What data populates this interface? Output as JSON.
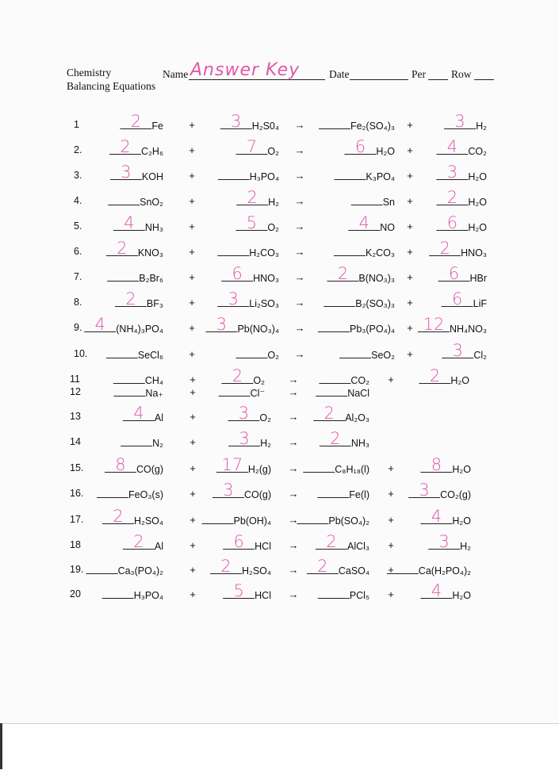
{
  "header": {
    "course": "Chemistry",
    "subtitle": "Balancing Equations",
    "name_label": "Name",
    "name_value": "Answer Key",
    "date_label": "Date",
    "per_label": "Per",
    "row_label": "Row"
  },
  "symbols": {
    "plus": "+",
    "arrow": "→"
  },
  "ink_color": "#e05aa8",
  "equations": [
    {
      "num": "1",
      "reactants": [
        {
          "coef": "2",
          "formula": "Fe"
        },
        {
          "coef": "3",
          "formula": "H₂S0₄"
        }
      ],
      "products": [
        {
          "coef": "",
          "formula": "Fe₂(SO₄)₃"
        },
        {
          "coef": "3",
          "formula": "H₂"
        }
      ]
    },
    {
      "num": "2.",
      "reactants": [
        {
          "coef": "2",
          "formula": "C₂H₆"
        },
        {
          "coef": "7",
          "formula": "O₂"
        }
      ],
      "products": [
        {
          "coef": "6",
          "formula": "H₂O"
        },
        {
          "coef": "4",
          "formula": "CO₂"
        }
      ]
    },
    {
      "num": "3.",
      "reactants": [
        {
          "coef": "3",
          "formula": "KOH"
        },
        {
          "coef": "",
          "formula": "H₃PO₄"
        }
      ],
      "products": [
        {
          "coef": "",
          "formula": "K₃PO₄"
        },
        {
          "coef": "3",
          "formula": "H₂O"
        }
      ]
    },
    {
      "num": "4.",
      "reactants": [
        {
          "coef": "",
          "formula": "SnO₂"
        },
        {
          "coef": "2",
          "formula": "H₂"
        }
      ],
      "products": [
        {
          "coef": "",
          "formula": "Sn"
        },
        {
          "coef": "2",
          "formula": "H₂O"
        }
      ]
    },
    {
      "num": "5.",
      "reactants": [
        {
          "coef": "4",
          "formula": "NH₃"
        },
        {
          "coef": "5",
          "formula": "O₂"
        }
      ],
      "products": [
        {
          "coef": "4",
          "formula": "NO"
        },
        {
          "coef": "6",
          "formula": "H₂O"
        }
      ]
    },
    {
      "num": "6.",
      "reactants": [
        {
          "coef": "2",
          "formula": "KNO₃"
        },
        {
          "coef": "",
          "formula": "H₂CO₃"
        }
      ],
      "products": [
        {
          "coef": "",
          "formula": "K₂CO₃"
        },
        {
          "coef": "2",
          "formula": "HNO₃"
        }
      ]
    },
    {
      "num": "7.",
      "reactants": [
        {
          "coef": "",
          "formula": "B₂Br₆"
        },
        {
          "coef": "6",
          "formula": "HNO₃"
        }
      ],
      "products": [
        {
          "coef": "2",
          "formula": "B(NO₃)₃"
        },
        {
          "coef": "6",
          "formula": "HBr"
        }
      ]
    },
    {
      "num": "8.",
      "reactants": [
        {
          "coef": "2",
          "formula": "BF₃"
        },
        {
          "coef": "3",
          "formula": "Li₂SO₃"
        }
      ],
      "products": [
        {
          "coef": "",
          "formula": "B₂(SO₃)₃"
        },
        {
          "coef": "6",
          "formula": "LiF"
        }
      ]
    },
    {
      "num": "9.",
      "reactants": [
        {
          "coef": "4",
          "formula": "(NH₄)₃PO₄"
        },
        {
          "coef": "3",
          "formula": "Pb(NO₃)₄"
        }
      ],
      "products": [
        {
          "coef": "",
          "formula": "Pb₃(PO₄)₄"
        },
        {
          "coef": "12",
          "formula": "NH₄NO₃"
        }
      ]
    },
    {
      "num": "10.",
      "reactants": [
        {
          "coef": "",
          "formula": "SeCl₆"
        },
        {
          "coef": "",
          "formula": "O₂"
        }
      ],
      "products": [
        {
          "coef": "",
          "formula": "SeO₂"
        },
        {
          "coef": "3",
          "formula": "Cl₂"
        }
      ]
    },
    {
      "num": "11",
      "reactants": [
        {
          "coef": "",
          "formula": "CH₄"
        },
        {
          "coef": "2",
          "formula": "O₂"
        }
      ],
      "products": [
        {
          "coef": "",
          "formula": "CO₂"
        },
        {
          "coef": "2",
          "formula": "H₂O"
        }
      ]
    },
    {
      "num": "12",
      "reactants": [
        {
          "coef": "",
          "formula": "Na₊"
        },
        {
          "coef": "",
          "formula": "Cl⁻"
        }
      ],
      "products": [
        {
          "coef": "",
          "formula": "NaCl"
        }
      ]
    },
    {
      "num": "13",
      "reactants": [
        {
          "coef": "4",
          "formula": "Al"
        },
        {
          "coef": "3",
          "formula": "O₂"
        }
      ],
      "products": [
        {
          "coef": "2",
          "formula": "Al₂O₃"
        }
      ]
    },
    {
      "num": "14",
      "reactants": [
        {
          "coef": "",
          "formula": "N₂"
        },
        {
          "coef": "3",
          "formula": "H₂"
        }
      ],
      "products": [
        {
          "coef": "2",
          "formula": "NH₃"
        }
      ]
    },
    {
      "num": "15.",
      "reactants": [
        {
          "coef": "8",
          "formula": "CO(g)"
        },
        {
          "coef": "17",
          "formula": "H₂(g)"
        }
      ],
      "products": [
        {
          "coef": "",
          "formula": "C₈H₁₈(l)"
        },
        {
          "coef": "8",
          "formula": "H₂O"
        }
      ]
    },
    {
      "num": "16.",
      "reactants": [
        {
          "coef": "",
          "formula": "FeO₃(s)"
        },
        {
          "coef": "3",
          "formula": "CO(g)"
        }
      ],
      "products": [
        {
          "coef": "",
          "formula": "Fe(l)"
        },
        {
          "coef": "3",
          "formula": "CO₂(g)"
        }
      ]
    },
    {
      "num": "17.",
      "reactants": [
        {
          "coef": "2",
          "formula": "H₂SO₄"
        },
        {
          "coef": "",
          "formula": "Pb(OH)₄"
        }
      ],
      "products": [
        {
          "coef": "",
          "formula": "Pb(SO₄)₂"
        },
        {
          "coef": "4",
          "formula": "H₂O"
        }
      ]
    },
    {
      "num": "18",
      "reactants": [
        {
          "coef": "2",
          "formula": "Al"
        },
        {
          "coef": "6",
          "formula": "HCl"
        }
      ],
      "products": [
        {
          "coef": "2",
          "formula": "AlCl₃"
        },
        {
          "coef": "3",
          "formula": "H₂"
        }
      ]
    },
    {
      "num": "19.",
      "reactants": [
        {
          "coef": "",
          "formula": "Ca₃(PO₄)₂"
        },
        {
          "coef": "2",
          "formula": "H₂SO₄"
        }
      ],
      "products": [
        {
          "coef": "2",
          "formula": "CaSO₄"
        },
        {
          "coef": "",
          "formula": "Ca(H₂PO₄)₂"
        }
      ]
    },
    {
      "num": "20",
      "reactants": [
        {
          "coef": "",
          "formula": "H₃PO₄"
        },
        {
          "coef": "5",
          "formula": "HCl"
        }
      ],
      "products": [
        {
          "coef": "",
          "formula": "PCl₅"
        },
        {
          "coef": "4",
          "formula": "H₂O"
        }
      ]
    }
  ]
}
